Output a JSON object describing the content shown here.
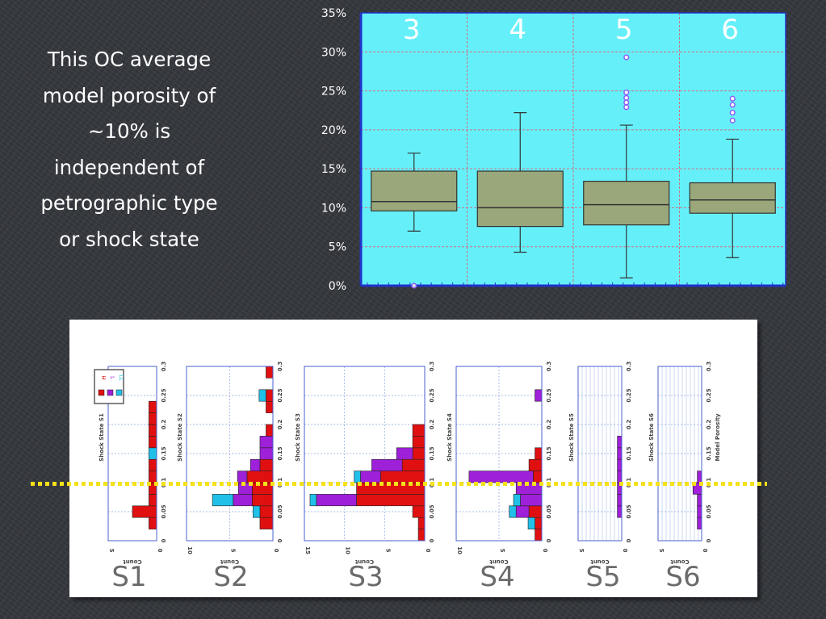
{
  "caption_lines": [
    "This OC average",
    "model porosity of",
    "~10% is",
    "independent of",
    "petrographic type",
    "or shock state"
  ],
  "colors": {
    "plot_background": "#65f0f9",
    "box_fill": "#9aa77a",
    "outlier": "#8b5cf6",
    "axis_line": "#2233cc",
    "grid_line": "#d07080",
    "dotted_line": "#f5e11a",
    "hist_red": "#e01010",
    "hist_purple": "#9e20d8",
    "hist_cyan": "#20c0e8",
    "label_text": "#444444"
  },
  "chart_data": [
    {
      "type": "box",
      "categories": [
        "3",
        "4",
        "5",
        "6"
      ],
      "ylim": [
        0,
        35
      ],
      "yticks": [
        "0%",
        "5%",
        "10%",
        "15%",
        "20%",
        "25%",
        "30%",
        "35%"
      ],
      "grid": true,
      "series": [
        {
          "category": "3",
          "whisker_low": 7.0,
          "q1": 9.6,
          "median": 10.8,
          "q3": 14.7,
          "whisker_high": 17.0,
          "outliers": [
            0.0
          ]
        },
        {
          "category": "4",
          "whisker_low": 4.3,
          "q1": 7.6,
          "median": 10.0,
          "q3": 14.7,
          "whisker_high": 22.2,
          "outliers": []
        },
        {
          "category": "5",
          "whisker_low": 1.0,
          "q1": 7.8,
          "median": 10.4,
          "q3": 13.4,
          "whisker_high": 20.6,
          "outliers": [
            22.9,
            23.5,
            24.1,
            24.8,
            29.3
          ]
        },
        {
          "category": "6",
          "whisker_low": 3.6,
          "q1": 9.3,
          "median": 11.0,
          "q3": 13.2,
          "whisker_high": 18.8,
          "outliers": [
            21.2,
            22.2,
            23.2,
            24.0
          ]
        }
      ]
    },
    {
      "type": "bar",
      "orientation": "horizontal-stacked",
      "value_axis": "Model Porosity",
      "count_axis": "Count",
      "legend": {
        "placement": "top-left",
        "labels": [
          "H",
          "L",
          "LL"
        ]
      },
      "panels": [
        {
          "name": "S1",
          "ylabel": "Shock State S1",
          "xmax": 5,
          "xticks": [
            "5",
            "0"
          ],
          "bins": [
            {
              "y0": 0.02,
              "y1": 0.04,
              "red": 0.8,
              "purple": 0,
              "cyan": 0
            },
            {
              "y0": 0.04,
              "y1": 0.06,
              "red": 2.5,
              "purple": 0,
              "cyan": 0
            },
            {
              "y0": 0.06,
              "y1": 0.08,
              "red": 0.8,
              "purple": 0,
              "cyan": 0
            },
            {
              "y0": 0.08,
              "y1": 0.1,
              "red": 0.8,
              "purple": 0,
              "cyan": 0
            },
            {
              "y0": 0.1,
              "y1": 0.12,
              "red": 0.8,
              "purple": 0,
              "cyan": 0
            },
            {
              "y0": 0.12,
              "y1": 0.14,
              "red": 0.8,
              "purple": 0,
              "cyan": 0
            },
            {
              "y0": 0.14,
              "y1": 0.16,
              "red": 0,
              "purple": 0,
              "cyan": 0.8
            },
            {
              "y0": 0.16,
              "y1": 0.18,
              "red": 0.8,
              "purple": 0,
              "cyan": 0
            },
            {
              "y0": 0.18,
              "y1": 0.2,
              "red": 0.8,
              "purple": 0,
              "cyan": 0
            },
            {
              "y0": 0.2,
              "y1": 0.22,
              "red": 0.8,
              "purple": 0,
              "cyan": 0
            },
            {
              "y0": 0.22,
              "y1": 0.24,
              "red": 0.8,
              "purple": 0,
              "cyan": 0
            }
          ]
        },
        {
          "name": "S2",
          "ylabel": "Shock State S2",
          "xmax": 10,
          "xticks": [
            "10",
            "5",
            "0"
          ],
          "bins": [
            {
              "y0": 0.0,
              "y1": 0.02,
              "red": 0,
              "purple": 0,
              "cyan": 0
            },
            {
              "y0": 0.02,
              "y1": 0.04,
              "red": 1.5,
              "purple": 0,
              "cyan": 0
            },
            {
              "y0": 0.04,
              "y1": 0.06,
              "red": 1.5,
              "purple": 0,
              "cyan": 0.8
            },
            {
              "y0": 0.06,
              "y1": 0.08,
              "red": 2.4,
              "purple": 2.2,
              "cyan": 2.4
            },
            {
              "y0": 0.08,
              "y1": 0.1,
              "red": 2.4,
              "purple": 1.6,
              "cyan": 0
            },
            {
              "y0": 0.1,
              "y1": 0.12,
              "red": 3.0,
              "purple": 1.1,
              "cyan": 0
            },
            {
              "y0": 0.12,
              "y1": 0.14,
              "red": 1.5,
              "purple": 1.1,
              "cyan": 0
            },
            {
              "y0": 0.14,
              "y1": 0.16,
              "red": 0,
              "purple": 1.5,
              "cyan": 0
            },
            {
              "y0": 0.16,
              "y1": 0.18,
              "red": 0,
              "purple": 1.5,
              "cyan": 0
            },
            {
              "y0": 0.18,
              "y1": 0.2,
              "red": 0.8,
              "purple": 0,
              "cyan": 0
            },
            {
              "y0": 0.22,
              "y1": 0.24,
              "red": 0.8,
              "purple": 0,
              "cyan": 0
            },
            {
              "y0": 0.24,
              "y1": 0.26,
              "red": 0.8,
              "purple": 0,
              "cyan": 0.8
            },
            {
              "y0": 0.28,
              "y1": 0.3,
              "red": 0.8,
              "purple": 0,
              "cyan": 0
            }
          ]
        },
        {
          "name": "S3",
          "ylabel": "Shock State S3",
          "xmax": 15,
          "xticks": [
            "15",
            "10",
            "5",
            "0"
          ],
          "bins": [
            {
              "y0": 0.0,
              "y1": 0.02,
              "red": 0.8,
              "purple": 0,
              "cyan": 0
            },
            {
              "y0": 0.02,
              "y1": 0.04,
              "red": 0.8,
              "purple": 0,
              "cyan": 0
            },
            {
              "y0": 0.04,
              "y1": 0.06,
              "red": 1.5,
              "purple": 0,
              "cyan": 0
            },
            {
              "y0": 0.06,
              "y1": 0.08,
              "red": 8.5,
              "purple": 5.0,
              "cyan": 0.8
            },
            {
              "y0": 0.08,
              "y1": 0.1,
              "red": 8.5,
              "purple": 0,
              "cyan": 0
            },
            {
              "y0": 0.1,
              "y1": 0.12,
              "red": 5.5,
              "purple": 2.5,
              "cyan": 0.8
            },
            {
              "y0": 0.12,
              "y1": 0.14,
              "red": 2.8,
              "purple": 3.8,
              "cyan": 0
            },
            {
              "y0": 0.14,
              "y1": 0.16,
              "red": 1.5,
              "purple": 2.0,
              "cyan": 0
            },
            {
              "y0": 0.16,
              "y1": 0.18,
              "red": 1.5,
              "purple": 0,
              "cyan": 0
            },
            {
              "y0": 0.18,
              "y1": 0.2,
              "red": 1.5,
              "purple": 0,
              "cyan": 0
            }
          ]
        },
        {
          "name": "S4",
          "ylabel": "Shock State S4",
          "xmax": 10,
          "xticks": [
            "10",
            "5",
            "0"
          ],
          "bins": [
            {
              "y0": 0.0,
              "y1": 0.02,
              "red": 0.8,
              "purple": 0,
              "cyan": 0
            },
            {
              "y0": 0.02,
              "y1": 0.04,
              "red": 0.8,
              "purple": 0,
              "cyan": 0.8
            },
            {
              "y0": 0.04,
              "y1": 0.06,
              "red": 1.5,
              "purple": 1.5,
              "cyan": 0.8
            },
            {
              "y0": 0.06,
              "y1": 0.08,
              "red": 0,
              "purple": 2.5,
              "cyan": 0.8
            },
            {
              "y0": 0.08,
              "y1": 0.1,
              "red": 0,
              "purple": 3.0,
              "cyan": 0
            },
            {
              "y0": 0.1,
              "y1": 0.12,
              "red": 1.0,
              "purple": 7.5,
              "cyan": 0
            },
            {
              "y0": 0.12,
              "y1": 0.14,
              "red": 1.5,
              "purple": 0,
              "cyan": 0
            },
            {
              "y0": 0.14,
              "y1": 0.16,
              "red": 0.8,
              "purple": 0,
              "cyan": 0
            },
            {
              "y0": 0.24,
              "y1": 0.26,
              "red": 0,
              "purple": 0.8,
              "cyan": 0
            }
          ]
        },
        {
          "name": "S5",
          "ylabel": "Shock State S5",
          "xmax": 5,
          "xticks": [
            "5",
            "0"
          ],
          "bins": [
            {
              "y0": 0.04,
              "y1": 0.06,
              "red": 0,
              "purple": 0.5,
              "cyan": 0
            },
            {
              "y0": 0.06,
              "y1": 0.08,
              "red": 0,
              "purple": 0.5,
              "cyan": 0
            },
            {
              "y0": 0.08,
              "y1": 0.1,
              "red": 0,
              "purple": 0.5,
              "cyan": 0
            },
            {
              "y0": 0.1,
              "y1": 0.12,
              "red": 0,
              "purple": 0.5,
              "cyan": 0
            },
            {
              "y0": 0.12,
              "y1": 0.14,
              "red": 0,
              "purple": 0.5,
              "cyan": 0
            },
            {
              "y0": 0.14,
              "y1": 0.16,
              "red": 0,
              "purple": 0.5,
              "cyan": 0
            },
            {
              "y0": 0.16,
              "y1": 0.18,
              "red": 0,
              "purple": 0.5,
              "cyan": 0
            }
          ]
        },
        {
          "name": "S6",
          "ylabel": "Shock State S6",
          "ylabel2": "Model Porosity",
          "xmax": 5,
          "xticks": [
            "5",
            "0"
          ],
          "bins": [
            {
              "y0": 0.02,
              "y1": 0.04,
              "red": 0,
              "purple": 0.5,
              "cyan": 0
            },
            {
              "y0": 0.04,
              "y1": 0.06,
              "red": 0,
              "purple": 0.5,
              "cyan": 0
            },
            {
              "y0": 0.06,
              "y1": 0.08,
              "red": 0,
              "purple": 0.5,
              "cyan": 0
            },
            {
              "y0": 0.08,
              "y1": 0.1,
              "red": 0,
              "purple": 1.0,
              "cyan": 0
            },
            {
              "y0": 0.1,
              "y1": 0.12,
              "red": 0,
              "purple": 0.5,
              "cyan": 0
            }
          ]
        }
      ],
      "yticks": [
        "0",
        "0.05",
        "0.1",
        "0.15",
        "0.2",
        "0.25",
        "0.3"
      ],
      "reference_line": {
        "value": 0.1,
        "style": "dotted"
      }
    }
  ]
}
